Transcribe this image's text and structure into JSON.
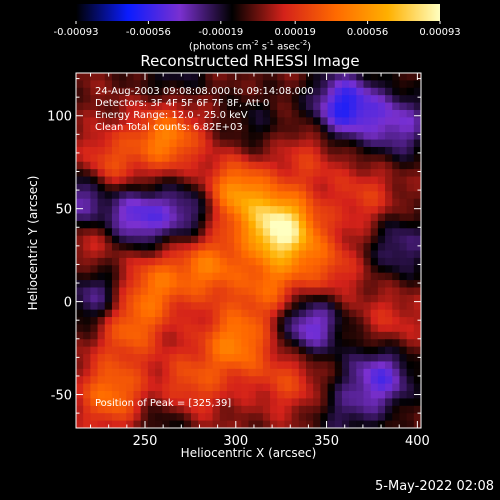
{
  "chart_data": {
    "type": "heatmap",
    "title": "Reconstructed RHESSI Image",
    "xlabel": "Heliocentric X (arcsec)",
    "ylabel": "Heliocentric Y (arcsec)",
    "xlim": [
      212,
      402
    ],
    "ylim": [
      -68,
      123
    ],
    "xticks": [
      250,
      300,
      350,
      400
    ],
    "yticks": [
      -50,
      0,
      50,
      100
    ],
    "colorbar": {
      "min": -0.00093,
      "max": 0.00093,
      "ticks": [
        "-0.00093",
        "-0.00056",
        "-0.00019",
        "0.00019",
        "0.00056",
        "0.00093"
      ],
      "tick_values": [
        -0.00093,
        -0.00056,
        -0.00019,
        0.00019,
        0.00056,
        0.00093
      ],
      "unit_parts": [
        "(photons cm",
        "-2",
        " s",
        "-1",
        " asec",
        "-2",
        ")"
      ],
      "colormap": [
        "#000000",
        "#0a1cff",
        "#7a30d0",
        "#000000",
        "#d4221a",
        "#ff6a00",
        "#ffb000",
        "#ffffc0"
      ]
    },
    "info_lines": [
      "24-Aug-2003 09:08:08.000 to 09:14:08.000",
      "Detectors: 3F 4F 5F 6F 7F 8F, Att 0",
      "Energy Range: 12.0 - 25.0 keV",
      "Clean     Total counts: 6.82E+03"
    ],
    "peak_label": "Position of Peak = [325,39]",
    "peak": [
      325,
      39
    ],
    "grid": false,
    "legend": "none",
    "blobs": [
      {
        "x": 325,
        "y": 39,
        "value": 0.00093
      },
      {
        "x": 300,
        "y": 58,
        "value": 0.00056
      },
      {
        "x": 262,
        "y": 88,
        "value": 0.00048
      },
      {
        "x": 230,
        "y": 72,
        "value": 0.00034
      },
      {
        "x": 285,
        "y": 20,
        "value": 0.00044
      },
      {
        "x": 255,
        "y": 10,
        "value": 0.00038
      },
      {
        "x": 320,
        "y": 6,
        "value": 0.00036
      },
      {
        "x": 350,
        "y": 18,
        "value": 0.00028
      },
      {
        "x": 300,
        "y": -22,
        "value": 0.00046
      },
      {
        "x": 240,
        "y": -12,
        "value": 0.00042
      },
      {
        "x": 232,
        "y": -50,
        "value": 0.00042
      },
      {
        "x": 275,
        "y": -45,
        "value": 0.0003
      },
      {
        "x": 330,
        "y": -42,
        "value": 0.00026
      },
      {
        "x": 372,
        "y": 55,
        "value": 0.00022
      },
      {
        "x": 385,
        "y": -12,
        "value": 0.00018
      },
      {
        "x": 222,
        "y": 33,
        "value": 0.00024
      },
      {
        "x": 340,
        "y": 78,
        "value": 0.0002
      },
      {
        "x": 245,
        "y": 45,
        "value": -0.0005
      },
      {
        "x": 275,
        "y": 48,
        "value": -0.00036
      },
      {
        "x": 215,
        "y": 55,
        "value": -0.00044
      },
      {
        "x": 225,
        "y": 2,
        "value": -0.0004
      },
      {
        "x": 360,
        "y": 105,
        "value": -0.0006
      },
      {
        "x": 340,
        "y": -12,
        "value": -0.0005
      },
      {
        "x": 380,
        "y": -40,
        "value": -0.00046
      },
      {
        "x": 265,
        "y": 122,
        "value": -0.0002
      },
      {
        "x": 310,
        "y": 95,
        "value": -0.00016
      },
      {
        "x": 390,
        "y": 95,
        "value": -0.00038
      },
      {
        "x": 390,
        "y": 30,
        "value": -0.0003
      },
      {
        "x": 360,
        "y": -60,
        "value": -0.00022
      },
      {
        "x": 260,
        "y": -65,
        "value": -0.00018
      }
    ]
  },
  "footer": {
    "date_stamp": "5-May-2022 02:08"
  }
}
